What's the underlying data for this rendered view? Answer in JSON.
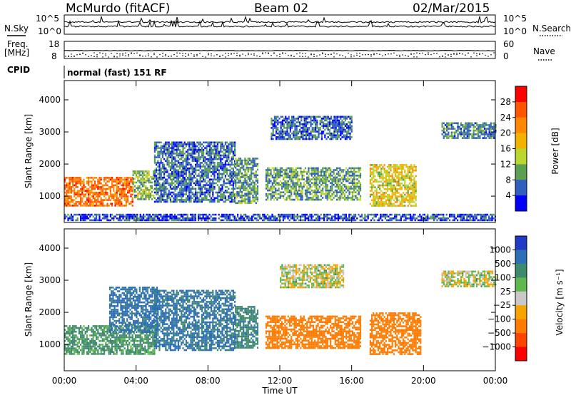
{
  "header": {
    "station_title": "McMurdo (fitACF)",
    "beam_title": "Beam 02",
    "date_title": "02/Mar/2015"
  },
  "panels": {
    "nsky_label": "N.Sky",
    "nsearch_label": "N.Search",
    "nsky_ticks": [
      "10^5",
      "10^0"
    ],
    "nsearch_ticks": [
      "10^5",
      "10^0"
    ],
    "freq_label_1": "Freq.",
    "freq_label_2": "[MHz]",
    "freq_ticks": [
      "18",
      "8"
    ],
    "nave_label": "Nave",
    "nave_ticks": [
      "60",
      "0"
    ],
    "cpid_label": "CPID",
    "cpid_text": "normal (fast) 151 RF"
  },
  "axes": {
    "xlabel": "Time UT",
    "xticks": [
      "00:00",
      "04:00",
      "08:00",
      "12:00",
      "16:00",
      "20:00",
      "00:00"
    ],
    "ylabel": "Slant Range [km]",
    "yticks": [
      "4000",
      "3000",
      "2000",
      "1000"
    ]
  },
  "colorbars": {
    "power": {
      "label": "Power [dB]",
      "ticks": [
        "28",
        "24",
        "20",
        "16",
        "12",
        "8",
        "4"
      ],
      "colors": [
        "#ff0000",
        "#ff5500",
        "#ff8800",
        "#f3b200",
        "#bcd630",
        "#5aa050",
        "#2f5fbf",
        "#0000ff"
      ]
    },
    "velocity": {
      "label": "Velocity [m s⁻¹]",
      "ticks": [
        "1000",
        "500",
        "100",
        "25",
        "−25",
        "−100",
        "−500",
        "−1000"
      ],
      "colors": [
        "#1e3cc8",
        "#2d6fb4",
        "#3f8a6e",
        "#5fb84e",
        "#c8c8c8",
        "#f6a400",
        "#ff7a00",
        "#ff4400",
        "#ff0000"
      ]
    }
  },
  "chart_data": [
    {
      "type": "heatmap",
      "title": "",
      "xlabel": "Time UT",
      "ylabel": "Slant Range [km]",
      "xlim": [
        0,
        24
      ],
      "ylim": [
        180,
        4600
      ],
      "colorbar_label": "Power [dB]",
      "colorbar_range": [
        0,
        32
      ],
      "regions": [
        {
          "t_start": 0.0,
          "t_end": 3.8,
          "r_start": 700,
          "r_end": 1600,
          "value": 24
        },
        {
          "t_start": 3.8,
          "t_end": 5.0,
          "r_start": 900,
          "r_end": 1800,
          "value": 12
        },
        {
          "t_start": 5.0,
          "t_end": 9.5,
          "r_start": 800,
          "r_end": 2700,
          "value": 7
        },
        {
          "t_start": 9.5,
          "t_end": 10.8,
          "r_start": 800,
          "r_end": 2200,
          "value": 9
        },
        {
          "t_start": 11.2,
          "t_end": 16.5,
          "r_start": 900,
          "r_end": 1900,
          "value": 10
        },
        {
          "t_start": 11.5,
          "t_end": 16.0,
          "r_start": 2800,
          "r_end": 3500,
          "value": 6
        },
        {
          "t_start": 17.0,
          "t_end": 19.6,
          "r_start": 700,
          "r_end": 2000,
          "value": 16
        },
        {
          "t_start": 21.0,
          "t_end": 24.0,
          "r_start": 2800,
          "r_end": 3300,
          "value": 8
        },
        {
          "t_start": 0.0,
          "t_end": 24.0,
          "r_start": 250,
          "r_end": 450,
          "value": 5
        }
      ]
    },
    {
      "type": "heatmap",
      "title": "",
      "xlabel": "Time UT",
      "ylabel": "Slant Range [km]",
      "xlim": [
        0,
        24
      ],
      "ylim": [
        180,
        4600
      ],
      "colorbar_label": "Velocity [m s⁻¹]",
      "colorbar_range": [
        -1000,
        1000
      ],
      "regions": [
        {
          "t_start": 0.0,
          "t_end": 5.0,
          "r_start": 700,
          "r_end": 1600,
          "value": 150
        },
        {
          "t_start": 2.5,
          "t_end": 5.2,
          "r_start": 1400,
          "r_end": 2800,
          "value": 700
        },
        {
          "t_start": 5.0,
          "t_end": 9.5,
          "r_start": 800,
          "r_end": 2700,
          "value": 600
        },
        {
          "t_start": 9.5,
          "t_end": 10.8,
          "r_start": 900,
          "r_end": 2200,
          "value": 400
        },
        {
          "t_start": 11.2,
          "t_end": 16.5,
          "r_start": 900,
          "r_end": 1900,
          "value": -300
        },
        {
          "t_start": 12.0,
          "t_end": 15.5,
          "r_start": 2800,
          "r_end": 3500,
          "value": 10
        },
        {
          "t_start": 17.0,
          "t_end": 19.8,
          "r_start": 700,
          "r_end": 2000,
          "value": -200
        },
        {
          "t_start": 21.0,
          "t_end": 24.0,
          "r_start": 2800,
          "r_end": 3300,
          "value": 10
        }
      ]
    }
  ]
}
